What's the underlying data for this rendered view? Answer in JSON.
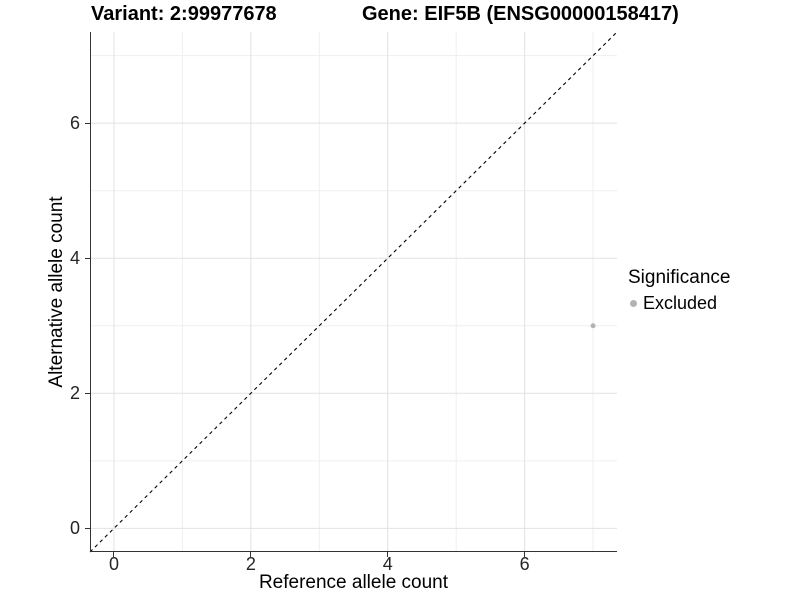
{
  "colors": {
    "background": "#ffffff",
    "grid_major": "#e2e2e2",
    "grid_minor": "#efefef",
    "axis_line": "#333333",
    "tick_text": "#262626",
    "title_text": "#000000",
    "point_gray": "#b3b3b3",
    "reference_line": "#000000"
  },
  "chart_data": {
    "type": "scatter",
    "titles": [
      "Variant: 2:99977678",
      "Gene: EIF5B (ENSG00000158417)"
    ],
    "xlabel": "Reference allele count",
    "ylabel": "Alternative allele count",
    "xlim": [
      -0.35,
      7.35
    ],
    "ylim": [
      -0.35,
      7.35
    ],
    "x_major_ticks": [
      0,
      2,
      4,
      6
    ],
    "y_major_ticks": [
      0,
      2,
      4,
      6
    ],
    "x_minor_ticks": [
      1,
      3,
      5,
      7
    ],
    "y_minor_ticks": [
      1,
      3,
      5,
      7
    ],
    "grid": "major+minor, light gray on white",
    "axis_lines": "left and bottom only",
    "legend_position": "right-middle",
    "legend_title": "Significance",
    "reference_line": {
      "kind": "identity y=x",
      "slope": 1,
      "intercept": 0,
      "style": "dashed",
      "color": "#000000"
    },
    "series": [
      {
        "name": "Excluded",
        "color": "#b3b3b3",
        "marker": "circle",
        "point_radius_px": 2.5,
        "points": [
          {
            "x": 7,
            "y": 3
          }
        ]
      }
    ]
  }
}
